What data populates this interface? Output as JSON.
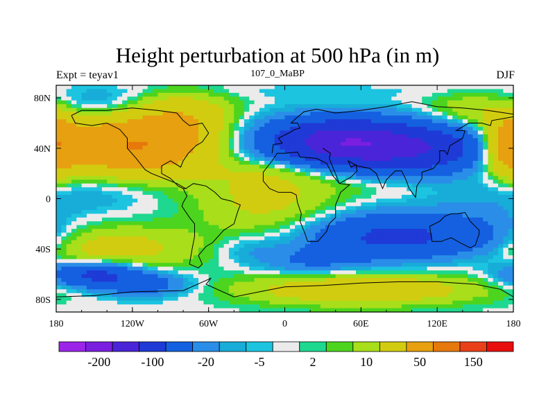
{
  "chart_data": {
    "type": "heatmap",
    "title": "Height perturbation at 500 hPa (in m)",
    "subtitle": "107_0_MaBP",
    "left_label": "Expt = teyav1",
    "right_label": "DJF",
    "x_axis": {
      "range": [
        -180,
        180
      ],
      "ticks": [
        -180,
        -120,
        -60,
        0,
        60,
        120,
        180
      ],
      "tick_labels": [
        "180",
        "120W",
        "60W",
        "0",
        "60E",
        "120E",
        "180"
      ]
    },
    "y_axis": {
      "range": [
        -90,
        90
      ],
      "ticks": [
        80,
        40,
        0,
        -40,
        -80
      ],
      "tick_labels": [
        "80N",
        "40N",
        "0",
        "40S",
        "80S"
      ]
    },
    "colorbar": {
      "colors": [
        "#9b24e8",
        "#7a1ee0",
        "#4a24d8",
        "#1f3ad6",
        "#1460e0",
        "#2a8ee8",
        "#18acd8",
        "#1cc4e0",
        "#ebebeb",
        "#1ed890",
        "#4cd41e",
        "#a8de1a",
        "#d2cc10",
        "#e6a010",
        "#e6780c",
        "#e84018",
        "#e80e0e"
      ],
      "tick_labels": [
        "-200",
        "-100",
        "-20",
        "-5",
        "2",
        "10",
        "50",
        "150"
      ]
    },
    "field_blobs": [
      {
        "lon": 0,
        "lat": 0,
        "r": 9999,
        "value": 0
      },
      {
        "lon": -150,
        "lat": 42,
        "rx": 55,
        "ry": 22,
        "value": 70
      },
      {
        "lon": -100,
        "lat": 42,
        "rx": 45,
        "ry": 22,
        "value": 60
      },
      {
        "lon": 178,
        "lat": 42,
        "rx": 18,
        "ry": 22,
        "value": 70
      },
      {
        "lon": 10,
        "lat": 60,
        "rx": 140,
        "ry": 14,
        "value": -8
      },
      {
        "lon": 5,
        "lat": 85,
        "rx": 170,
        "ry": 6,
        "value": -3
      },
      {
        "lon": -80,
        "lat": 65,
        "rx": 40,
        "ry": 18,
        "value": 40
      },
      {
        "lon": 150,
        "lat": 70,
        "rx": 40,
        "ry": 14,
        "value": 20
      },
      {
        "lon": 80,
        "lat": 40,
        "rx": 80,
        "ry": 18,
        "value": -120
      },
      {
        "lon": 40,
        "lat": 48,
        "rx": 45,
        "ry": 14,
        "value": -60
      },
      {
        "lon": -150,
        "lat": 75,
        "rx": 45,
        "ry": 12,
        "value": -15
      },
      {
        "lon": -150,
        "lat": 5,
        "rx": 45,
        "ry": 16,
        "value": -10
      },
      {
        "lon": -140,
        "lat": -40,
        "rx": 70,
        "ry": 18,
        "value": 30
      },
      {
        "lon": -15,
        "lat": 0,
        "rx": 55,
        "ry": 30,
        "value": 25
      },
      {
        "lon": 0,
        "lat": 22,
        "rx": 60,
        "ry": 10,
        "value": 12
      },
      {
        "lon": 90,
        "lat": -30,
        "rx": 70,
        "ry": 18,
        "value": -60
      },
      {
        "lon": 20,
        "lat": -50,
        "rx": 40,
        "ry": 12,
        "value": -20
      },
      {
        "lon": -150,
        "lat": -60,
        "rx": 35,
        "ry": 10,
        "value": -60
      },
      {
        "lon": -110,
        "lat": -68,
        "rx": 35,
        "ry": 10,
        "value": -30
      },
      {
        "lon": 60,
        "lat": -72,
        "rx": 90,
        "ry": 12,
        "value": 40
      },
      {
        "lon": 60,
        "lat": 10,
        "rx": 50,
        "ry": 10,
        "value": 6
      },
      {
        "lon": 150,
        "lat": 0,
        "rx": 40,
        "ry": 20,
        "value": -6
      },
      {
        "lon": 165,
        "lat": -35,
        "rx": 30,
        "ry": 20,
        "value": -12
      },
      {
        "lon": -30,
        "lat": -40,
        "rx": 25,
        "ry": 12,
        "value": -10
      }
    ]
  }
}
